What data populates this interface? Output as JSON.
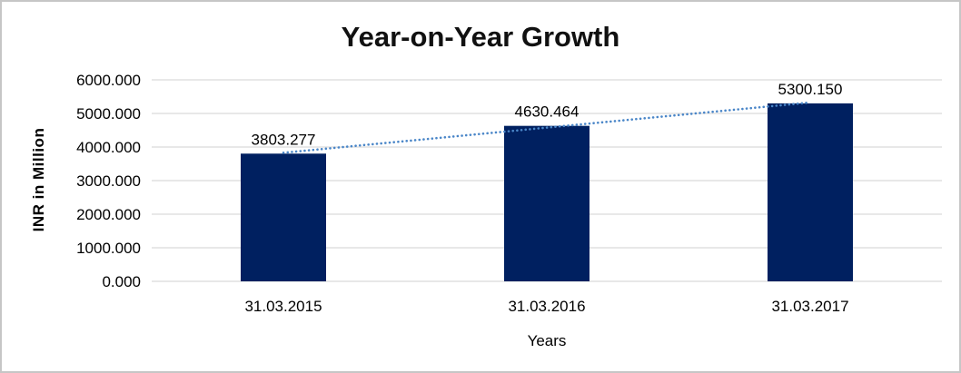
{
  "frame": {
    "background": "#ffffff",
    "border_color": "#c6c6c6"
  },
  "chart_data": {
    "type": "bar",
    "title": "Year-on-Year Growth",
    "xlabel": "Years",
    "ylabel": "INR in Million",
    "categories": [
      "31.03.2015",
      "31.03.2016",
      "31.03.2017"
    ],
    "values": [
      3803.277,
      4630.464,
      5300.15
    ],
    "data_labels": [
      "3803.277",
      "4630.464",
      "5300.150"
    ],
    "ylim": [
      0,
      6000
    ],
    "y_ticks": [
      0,
      1000,
      2000,
      3000,
      4000,
      5000,
      6000
    ],
    "y_tick_labels": [
      "0.000",
      "1000.000",
      "2000.000",
      "3000.000",
      "4000.000",
      "5000.000",
      "6000.000"
    ],
    "grid": true,
    "legend": "none",
    "trendline": {
      "type": "linear",
      "style": "dotted"
    },
    "colors": {
      "bar": "#002060",
      "trendline": "#4a86c8",
      "gridline": "#d9d9d9",
      "text": "#000000"
    }
  }
}
